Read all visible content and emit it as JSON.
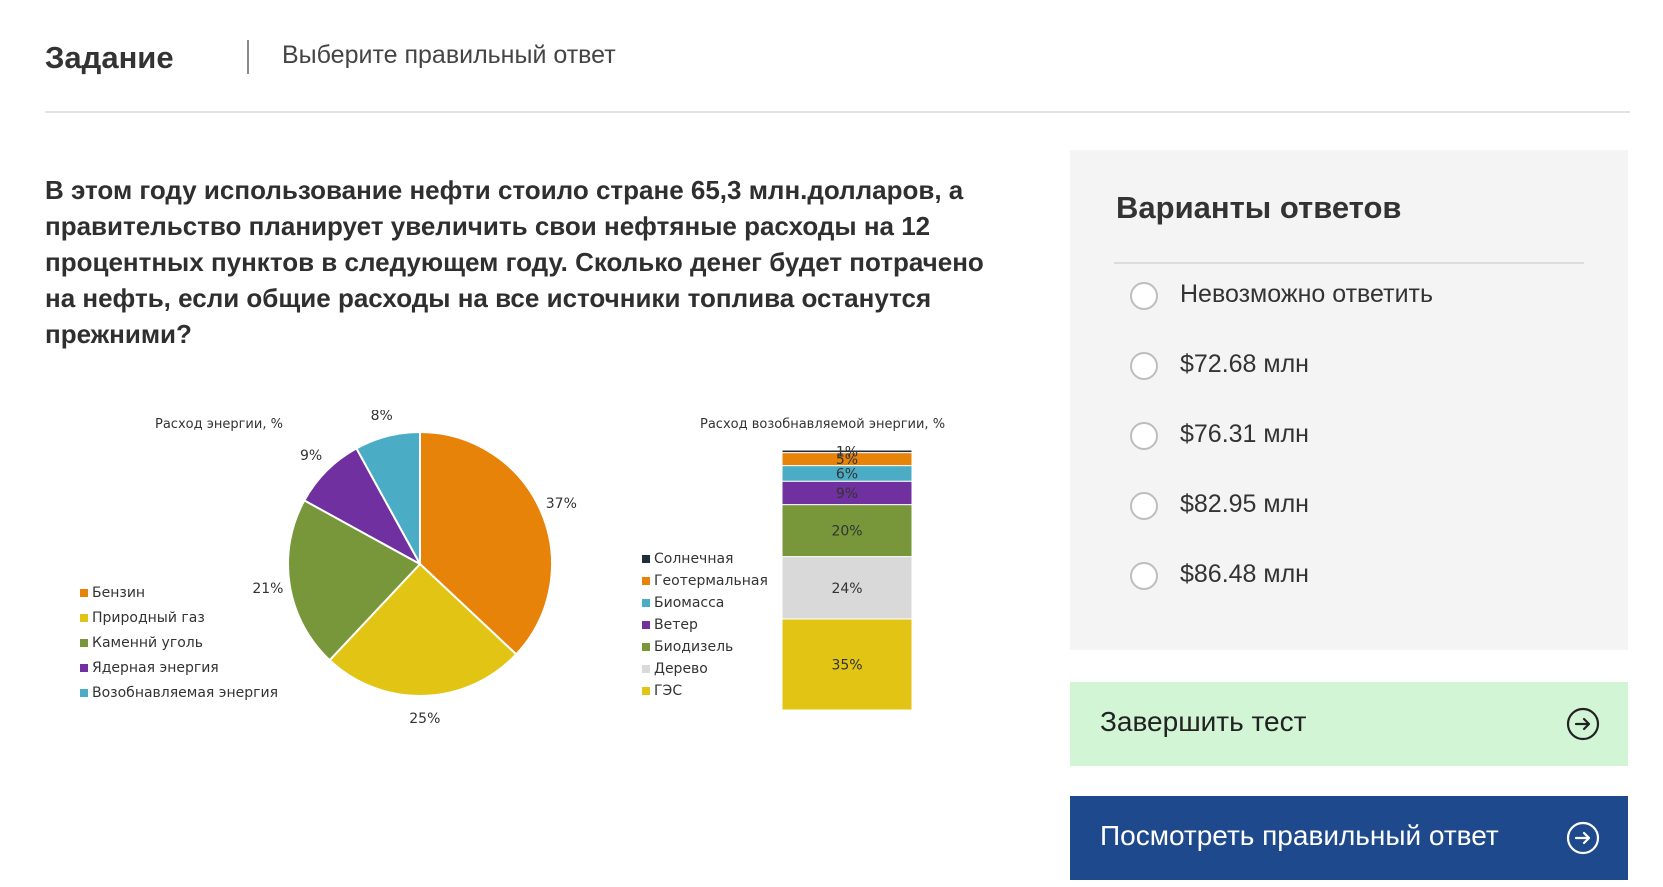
{
  "header": {
    "title": "Задание",
    "subtitle": "Выберите правильный ответ"
  },
  "question": {
    "text": "В этом году использование нефти стоило стране 65,3 млн.долларов, а правительство планирует увеличить свои нефтяные расходы на 12 процентных пунктов в следующем году. Сколько денег будет потрачено на нефть, если общие расходы на все источники топлива останутся прежними?"
  },
  "answers": {
    "title": "Варианты ответов",
    "options": [
      {
        "label": "Невозможно ответить"
      },
      {
        "label": "$72.68 млн"
      },
      {
        "label": "$76.31 млн"
      },
      {
        "label": "$82.95 млн"
      },
      {
        "label": "$86.48 млн"
      }
    ]
  },
  "buttons": {
    "finish": {
      "label": "Завершить тест",
      "icon": "arrow-right-circle-icon"
    },
    "show_answer": {
      "label": "Посмотреть правильный ответ",
      "icon": "arrow-right-circle-icon"
    }
  },
  "colors": {
    "answer_button_bg": "#1e4a8d",
    "finish_button_bg": "#d2f5d6"
  },
  "chart_data": [
    {
      "type": "pie",
      "title": "Расход энергии, %",
      "legend_position": "left",
      "categories": [
        "Бензин",
        "Природный газ",
        "Каменнй уголь",
        "Ядерная энергия",
        "Возобнавляемая энергия"
      ],
      "values": [
        37,
        25,
        21,
        9,
        8
      ],
      "labels": [
        "37%",
        "25%",
        "21%",
        "9%",
        "8%"
      ],
      "colors": [
        "#e8830a",
        "#e2c514",
        "#77973a",
        "#7030a0",
        "#4bacc6"
      ]
    },
    {
      "type": "bar",
      "stacked": true,
      "title": "Расход возобнавляемой энергии, %",
      "legend_position": "left",
      "categories": [
        "ГЭС",
        "Дерево",
        "Биодизель",
        "Ветер",
        "Биомасса",
        "Геотермальная",
        "Солнечная"
      ],
      "values": [
        35,
        24,
        20,
        9,
        6,
        5,
        1
      ],
      "labels": [
        "35%",
        "24%",
        "20%",
        "9%",
        "6%",
        "5%",
        "1%"
      ],
      "colors": [
        "#e2c514",
        "#d9d9d9",
        "#77973a",
        "#7030a0",
        "#4bacc6",
        "#e8830a",
        "#1f2d3d"
      ],
      "legend_order": [
        "Солнечная",
        "Геотермальная",
        "Биомасса",
        "Ветер",
        "Биодизель",
        "Дерево",
        "ГЭС"
      ]
    }
  ]
}
